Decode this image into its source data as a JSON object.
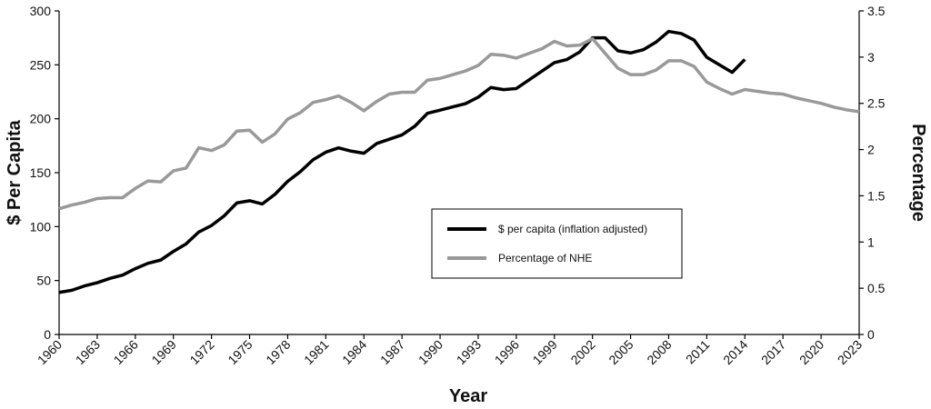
{
  "chart_data": {
    "type": "line",
    "xlabel": "Year",
    "ylabel": "$ Per Capita",
    "y2label": "Percentage",
    "x": [
      1960,
      1961,
      1962,
      1963,
      1964,
      1965,
      1966,
      1967,
      1968,
      1969,
      1970,
      1971,
      1972,
      1973,
      1974,
      1975,
      1976,
      1977,
      1978,
      1979,
      1980,
      1981,
      1982,
      1983,
      1984,
      1985,
      1986,
      1987,
      1988,
      1989,
      1990,
      1991,
      1992,
      1993,
      1994,
      1995,
      1996,
      1997,
      1998,
      1999,
      2000,
      2001,
      2002,
      2003,
      2004,
      2005,
      2006,
      2007,
      2008,
      2009,
      2010,
      2011,
      2012,
      2013,
      2014,
      2015,
      2016,
      2017,
      2018,
      2019,
      2020,
      2021,
      2022,
      2023
    ],
    "xlim": [
      1960,
      2023
    ],
    "xticks": [
      1960,
      1963,
      1966,
      1969,
      1972,
      1975,
      1978,
      1981,
      1984,
      1987,
      1990,
      1993,
      1996,
      1999,
      2002,
      2005,
      2008,
      2011,
      2014,
      2017,
      2020,
      2023
    ],
    "ylim": [
      0,
      300
    ],
    "yticks": [
      0,
      50,
      100,
      150,
      200,
      250,
      300
    ],
    "y2lim": [
      0,
      3.5
    ],
    "y2ticks": [
      0,
      0.5,
      1,
      1.5,
      2,
      2.5,
      3,
      3.5
    ],
    "series": [
      {
        "name": "$ per capita (inflation adjusted)",
        "color": "#000000",
        "values": [
          39,
          41,
          45,
          48,
          52,
          55,
          61,
          66,
          69,
          77,
          84,
          95,
          101,
          110,
          122,
          124,
          121,
          130,
          142,
          151,
          162,
          169,
          173,
          170,
          168,
          177,
          181,
          185,
          193,
          205,
          208,
          211,
          214,
          220,
          229,
          227,
          228,
          236,
          244,
          252,
          255,
          262,
          275,
          275,
          263,
          261,
          264,
          271,
          281,
          279,
          273,
          257,
          250,
          243,
          255,
          null,
          null,
          null,
          null,
          null,
          null,
          null,
          null,
          null
        ]
      },
      {
        "name": "Percentage of NHE",
        "color": "#999999",
        "axis": "y2",
        "values": [
          1.36,
          1.4,
          1.43,
          1.47,
          1.48,
          1.48,
          1.58,
          1.66,
          1.65,
          1.77,
          1.8,
          2.02,
          1.99,
          2.05,
          2.2,
          2.21,
          2.08,
          2.17,
          2.33,
          2.4,
          2.51,
          2.54,
          2.58,
          2.51,
          2.42,
          2.52,
          2.6,
          2.62,
          2.62,
          2.75,
          2.77,
          2.81,
          2.85,
          2.91,
          3.03,
          3.02,
          2.99,
          3.04,
          3.09,
          3.17,
          3.12,
          3.13,
          3.2,
          3.04,
          2.88,
          2.81,
          2.81,
          2.86,
          2.96,
          2.96,
          2.9,
          2.73,
          2.66,
          2.6,
          2.65,
          2.63,
          2.61,
          2.6,
          2.56,
          2.53,
          2.5,
          2.46,
          2.43,
          2.41
        ]
      }
    ]
  }
}
